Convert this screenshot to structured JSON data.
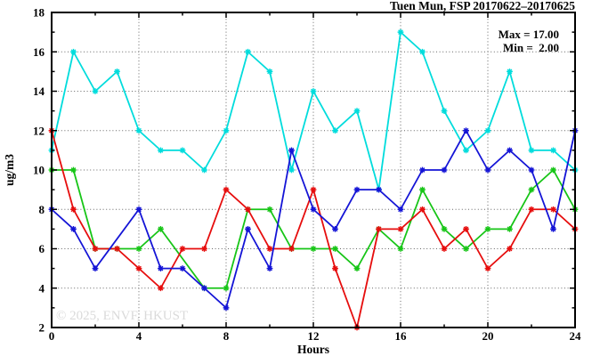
{
  "title": "Tuen Mun, FSP 20170622–20170625",
  "watermark": "© 2025, ENVF, HKUST",
  "legend": {
    "max_label": "Max = 17.00",
    "min_label": "Min =  2.00"
  },
  "chart_data": {
    "type": "line",
    "title": "Tuen Mun, FSP 20170622–20170625",
    "xlabel": "Hours",
    "ylabel": "ug/m3",
    "xlim": [
      0,
      24
    ],
    "ylim": [
      2,
      18
    ],
    "grid": true,
    "x_ticks_major": [
      0,
      4,
      8,
      12,
      16,
      20,
      24
    ],
    "x_ticks_minor": [
      2,
      6,
      10,
      14,
      18,
      22
    ],
    "y_ticks_major": [
      2,
      4,
      6,
      8,
      10,
      12,
      14,
      16,
      18
    ],
    "y_ticks_minor": [
      3,
      5,
      7,
      9,
      11,
      13,
      15,
      17
    ],
    "x_gridlines": [
      4,
      8,
      12,
      16,
      20
    ],
    "y_gridlines": [
      4,
      6,
      8,
      10,
      12,
      14,
      16
    ],
    "x": [
      0,
      1,
      2,
      3,
      4,
      5,
      6,
      7,
      8,
      9,
      10,
      11,
      12,
      13,
      14,
      15,
      16,
      17,
      18,
      19,
      20,
      21,
      22,
      23,
      24
    ],
    "series": [
      {
        "name": "cyan-line",
        "color": "#00dcdc",
        "values": [
          11,
          16,
          14,
          15,
          12,
          11,
          11,
          10,
          12,
          16,
          15,
          10,
          14,
          12,
          13,
          9,
          17,
          16,
          13,
          11,
          12,
          15,
          11,
          11,
          10
        ]
      },
      {
        "name": "green-line",
        "color": "#17c517",
        "values": [
          10,
          10,
          6,
          6,
          6,
          7,
          null,
          4,
          4,
          8,
          8,
          6,
          6,
          6,
          5,
          7,
          6,
          9,
          7,
          6,
          7,
          7,
          9,
          10,
          8
        ]
      },
      {
        "name": "red-line",
        "color": "#e60d0d",
        "values": [
          12,
          8,
          6,
          6,
          5,
          4,
          6,
          6,
          9,
          8,
          6,
          6,
          9,
          5,
          2,
          7,
          7,
          8,
          6,
          7,
          5,
          6,
          8,
          8,
          7
        ]
      },
      {
        "name": "blue-line",
        "color": "#1414d6",
        "values": [
          8,
          7,
          5,
          null,
          8,
          5,
          5,
          4,
          3,
          7,
          5,
          11,
          8,
          7,
          9,
          9,
          8,
          10,
          10,
          12,
          10,
          11,
          10,
          7,
          12
        ]
      }
    ],
    "annotations": {
      "max": "Max = 17.00",
      "min": "Min =  2.00"
    }
  }
}
